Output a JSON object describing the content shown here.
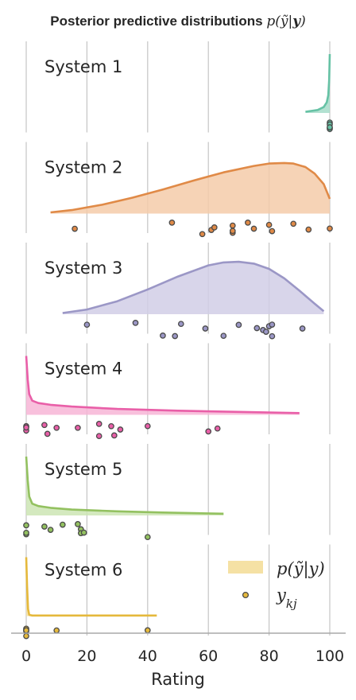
{
  "chart_data": {
    "type": "ridge",
    "title": "Posterior predictive distributions p(ỹ|y)",
    "xlabel": "Rating",
    "xlim": [
      0,
      100
    ],
    "xticks": [
      0,
      20,
      40,
      60,
      80,
      100
    ],
    "grid": "vertical",
    "legend": {
      "placement": "bottom-right",
      "density_label": "p(ỹ|y)",
      "points_label": "y_kj",
      "density_swatch_color": "#f5e1a4",
      "points_color": "#e5b93c"
    },
    "series": [
      {
        "name": "System 1",
        "color": "#66c2a5",
        "fill": "#a6dcc9",
        "density": {
          "x": [
            92,
            96,
            98,
            99,
            99.5,
            99.8,
            100
          ],
          "y": [
            0.02,
            0.05,
            0.1,
            0.18,
            0.3,
            0.55,
            1.0
          ]
        },
        "points": [
          100,
          100,
          100,
          100,
          100
        ]
      },
      {
        "name": "System 2",
        "color": "#e08a47",
        "fill": "#f5cba9",
        "density": {
          "x": [
            8,
            15,
            25,
            35,
            45,
            55,
            65,
            75,
            80,
            85,
            88,
            92,
            95,
            98,
            100
          ],
          "y": [
            0.02,
            0.06,
            0.15,
            0.27,
            0.41,
            0.56,
            0.7,
            0.81,
            0.85,
            0.86,
            0.85,
            0.79,
            0.68,
            0.5,
            0.25
          ]
        },
        "points": [
          16,
          48,
          58,
          61,
          62,
          68,
          68,
          68,
          73,
          75,
          80,
          81,
          88,
          93,
          100
        ]
      },
      {
        "name": "System 3",
        "color": "#9b97c6",
        "fill": "#d1cee6",
        "density": {
          "x": [
            12,
            20,
            30,
            40,
            50,
            60,
            65,
            70,
            75,
            80,
            85,
            90,
            95,
            98
          ],
          "y": [
            0.02,
            0.08,
            0.22,
            0.42,
            0.64,
            0.83,
            0.88,
            0.89,
            0.86,
            0.77,
            0.61,
            0.4,
            0.18,
            0.05
          ]
        },
        "points": [
          20,
          36,
          45,
          49,
          51,
          59,
          65,
          70,
          76,
          78,
          79,
          80,
          81,
          81,
          91
        ]
      },
      {
        "name": "System 4",
        "color": "#e95fa8",
        "fill": "#f7b5d6",
        "density": {
          "x": [
            0,
            0.5,
            1,
            2,
            4,
            8,
            15,
            30,
            50,
            70,
            90
          ],
          "y": [
            1.0,
            0.6,
            0.35,
            0.24,
            0.2,
            0.17,
            0.14,
            0.1,
            0.07,
            0.05,
            0.03
          ]
        },
        "points": [
          0,
          0,
          0,
          6,
          7,
          10,
          17,
          24,
          24,
          28,
          29,
          31,
          40,
          60,
          63
        ]
      },
      {
        "name": "System 5",
        "color": "#93c160",
        "fill": "#cde5b4",
        "density": {
          "x": [
            0,
            0.5,
            1,
            2,
            4,
            8,
            15,
            30,
            45,
            65
          ],
          "y": [
            1.0,
            0.6,
            0.32,
            0.2,
            0.16,
            0.13,
            0.1,
            0.07,
            0.05,
            0.03
          ]
        },
        "points": [
          0,
          0,
          0,
          6,
          8,
          12,
          17,
          18,
          18,
          19,
          40
        ]
      },
      {
        "name": "System 6",
        "color": "#e5b93c",
        "fill": "#f5e1a4",
        "density": {
          "x": [
            0,
            0.3,
            0.6,
            1,
            2,
            5,
            15,
            30,
            43
          ],
          "y": [
            1.0,
            0.5,
            0.12,
            0.02,
            0.01,
            0.01,
            0.01,
            0.01,
            0.01
          ]
        },
        "points": [
          0,
          0,
          0,
          0,
          0,
          10,
          40
        ]
      }
    ]
  }
}
